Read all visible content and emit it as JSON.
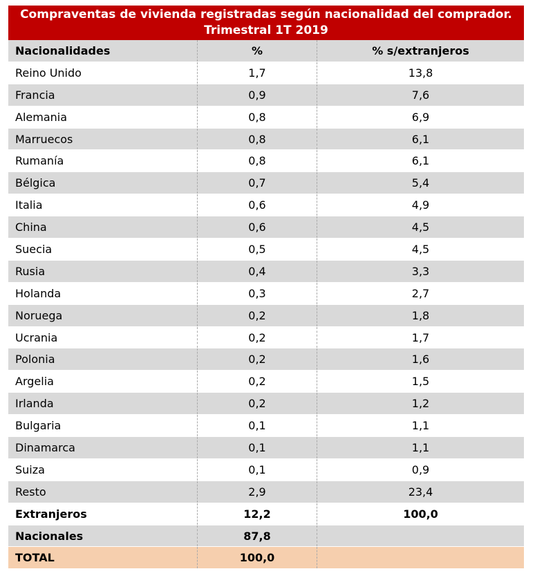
{
  "title": "Compraventas de vivienda registradas según nacionalidad del comprador. Trimestral 1T 2019",
  "table": {
    "header": [
      "Nacionalidades",
      "%",
      "% s/extranjeros"
    ],
    "rows": [
      [
        "Reino Unido",
        "1,7",
        "13,8"
      ],
      [
        "Francia",
        "0,9",
        "7,6"
      ],
      [
        "Alemania",
        "0,8",
        "6,9"
      ],
      [
        "Marruecos",
        "0,8",
        "6,1"
      ],
      [
        "Rumanía",
        "0,8",
        "6,1"
      ],
      [
        "Bélgica",
        "0,7",
        "5,4"
      ],
      [
        "Italia",
        "0,6",
        "4,9"
      ],
      [
        "China",
        "0,6",
        "4,5"
      ],
      [
        "Suecia",
        "0,5",
        "4,5"
      ],
      [
        "Rusia",
        "0,4",
        "3,3"
      ],
      [
        "Holanda",
        "0,3",
        "2,7"
      ],
      [
        "Noruega",
        "0,2",
        "1,8"
      ],
      [
        "Ucrania",
        "0,2",
        "1,7"
      ],
      [
        "Polonia",
        "0,2",
        "1,6"
      ],
      [
        "Argelia",
        "0,2",
        "1,5"
      ],
      [
        "Irlanda",
        "0,2",
        "1,2"
      ],
      [
        "Bulgaria",
        "0,1",
        "1,1"
      ],
      [
        "Dinamarca",
        "0,1",
        "1,1"
      ],
      [
        "Suiza",
        "0,1",
        "0,9"
      ],
      [
        "Resto",
        "2,9",
        "23,4"
      ]
    ],
    "totals": [
      [
        "Extranjeros",
        "12,2",
        "100,0"
      ],
      [
        "Nacionales",
        "87,8"
      ],
      [
        "TOTAL",
        "100,0"
      ]
    ]
  }
}
